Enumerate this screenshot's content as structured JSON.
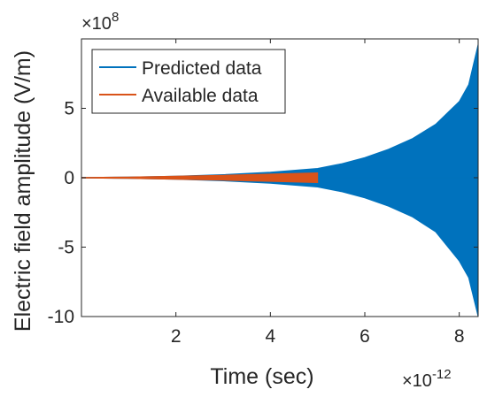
{
  "chart_data": {
    "type": "area",
    "title": "",
    "xlabel": "Time (sec)",
    "ylabel": "Electric field amplitude (V/m)",
    "x_multiplier": "×10",
    "x_multiplier_exp": "-12",
    "y_multiplier": "×10",
    "y_multiplier_exp": "8",
    "xlim": [
      0,
      8.4
    ],
    "ylim": [
      -10,
      10
    ],
    "x_ticks": [
      2,
      4,
      6,
      8
    ],
    "y_ticks": [
      -10,
      -5,
      0,
      5
    ],
    "x_tick_labels": [
      "2",
      "4",
      "6",
      "8"
    ],
    "y_tick_labels": [
      "-10",
      "-5",
      "0",
      "5"
    ],
    "grid": false,
    "legend_position": "top-left",
    "series": [
      {
        "name": "Predicted data",
        "color": "#0072BD",
        "x": [
          0,
          1,
          2,
          3,
          4,
          5,
          5.5,
          6,
          6.5,
          7,
          7.5,
          8,
          8.2,
          8.4
        ],
        "y_upper": [
          0.02,
          0.05,
          0.11,
          0.22,
          0.4,
          0.67,
          1.0,
          1.45,
          2.05,
          2.8,
          3.85,
          5.5,
          6.7,
          9.6
        ],
        "y_lower": [
          -0.02,
          -0.05,
          -0.11,
          -0.22,
          -0.4,
          -0.67,
          -1.0,
          -1.45,
          -2.05,
          -2.8,
          -3.9,
          -6.0,
          -7.2,
          -10.0
        ]
      },
      {
        "name": "Available data",
        "color": "#D95319",
        "x": [
          0,
          1,
          2,
          3,
          4,
          5
        ],
        "y_upper": [
          0.02,
          0.05,
          0.11,
          0.18,
          0.26,
          0.35
        ],
        "y_lower": [
          -0.02,
          -0.05,
          -0.11,
          -0.18,
          -0.26,
          -0.35
        ]
      }
    ]
  }
}
